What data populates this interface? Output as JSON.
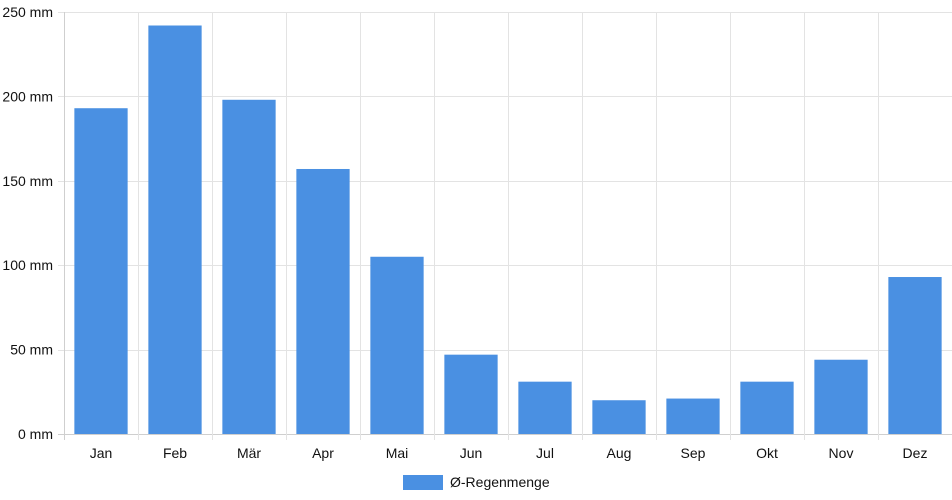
{
  "chart_data": {
    "type": "bar",
    "categories": [
      "Jan",
      "Feb",
      "Mär",
      "Apr",
      "Mai",
      "Jun",
      "Jul",
      "Aug",
      "Sep",
      "Okt",
      "Nov",
      "Dez"
    ],
    "series": [
      {
        "name": "Ø-Regenmenge",
        "values": [
          193,
          242,
          198,
          157,
          105,
          47,
          31,
          20,
          21,
          31,
          44,
          93
        ],
        "color": "#4a90e2"
      }
    ],
    "title": "",
    "xlabel": "",
    "ylabel": "",
    "ylim": [
      0,
      250
    ],
    "yticks": [
      0,
      50,
      100,
      150,
      200,
      250
    ],
    "ytick_unit": "mm",
    "ytick_labels": [
      "0 mm",
      "50 mm",
      "100 mm",
      "150 mm",
      "200 mm",
      "250 mm"
    ],
    "grid": true,
    "legend_position": "bottom-center"
  },
  "legend": {
    "label": "Ø-Regenmenge"
  }
}
